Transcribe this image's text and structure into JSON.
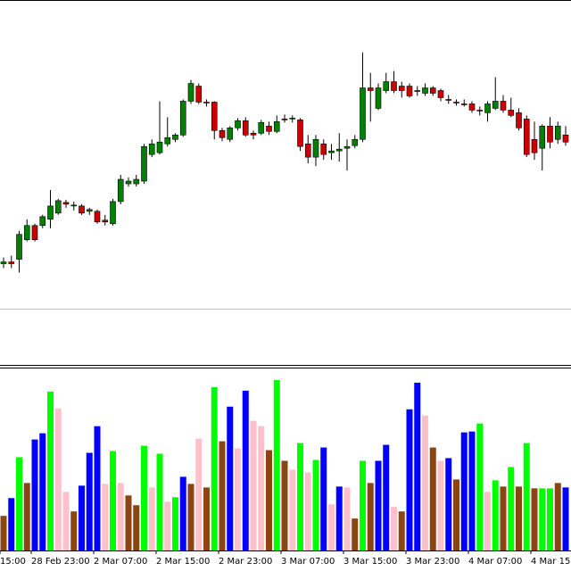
{
  "chart_data": [
    {
      "type": "candlestick",
      "categories": [
        "15:00",
        null,
        null,
        null,
        "28 Feb 23:00",
        null,
        null,
        null,
        null,
        null,
        null,
        null,
        "2 Mar 07:00",
        null,
        null,
        null,
        null,
        null,
        null,
        null,
        "2 Mar 15:00",
        null,
        null,
        null,
        null,
        null,
        null,
        null,
        "2 Mar 23:00",
        null,
        null,
        null,
        null,
        null,
        null,
        null,
        "3 Mar 07:00",
        null,
        null,
        null,
        null,
        null,
        null,
        null,
        "3 Mar 15:00",
        null,
        null,
        null,
        null,
        null,
        null,
        null,
        "3 Mar 23:00",
        null,
        null,
        null,
        null,
        null,
        null,
        null,
        "4 Mar 07:00",
        null,
        null,
        null,
        null,
        null,
        null,
        null,
        "4 Mar 15",
        null,
        null,
        null,
        null
      ],
      "open": [
        115,
        117,
        120,
        142,
        158,
        158,
        165,
        172,
        184,
        180,
        180,
        174,
        174,
        164,
        160,
        185,
        205,
        205,
        208,
        238,
        240,
        250,
        255,
        260,
        298,
        315,
        297,
        297,
        265,
        255,
        268,
        276,
        262,
        262,
        270,
        264,
        278,
        278,
        277,
        250,
        235,
        250,
        240,
        242,
        245,
        248,
        255,
        313,
        290,
        310,
        320,
        315,
        315,
        310,
        307,
        313,
        310,
        300,
        297,
        295,
        295,
        288,
        285,
        290,
        298,
        288,
        285,
        278,
        255,
        245,
        270,
        255,
        260
      ],
      "high": [
        122,
        124,
        152,
        165,
        160,
        170,
        198,
        188,
        187,
        185,
        182,
        178,
        176,
        170,
        188,
        215,
        212,
        215,
        250,
        255,
        298,
        280,
        262,
        300,
        322,
        318,
        300,
        298,
        268,
        270,
        279,
        280,
        265,
        277,
        275,
        282,
        283,
        282,
        279,
        260,
        260,
        255,
        250,
        262,
        255,
        260,
        353,
        330,
        318,
        330,
        332,
        320,
        318,
        315,
        318,
        315,
        312,
        305,
        300,
        300,
        298,
        292,
        298,
        325,
        305,
        302,
        290,
        282,
        275,
        272,
        280,
        275,
        270
      ],
      "low": [
        110,
        110,
        105,
        140,
        140,
        155,
        155,
        170,
        178,
        175,
        170,
        170,
        160,
        158,
        158,
        182,
        202,
        202,
        205,
        235,
        238,
        247,
        252,
        258,
        295,
        295,
        292,
        255,
        253,
        252,
        265,
        258,
        255,
        260,
        260,
        262,
        274,
        274,
        242,
        228,
        225,
        232,
        232,
        230,
        220,
        245,
        252,
        275,
        288,
        307,
        307,
        302,
        302,
        304,
        304,
        304,
        298,
        295,
        293,
        292,
        285,
        282,
        275,
        288,
        285,
        280,
        265,
        235,
        232,
        220,
        245,
        250,
        248
      ],
      "close": [
        117,
        115,
        148,
        158,
        142,
        168,
        180,
        186,
        182,
        181,
        172,
        176,
        162,
        162,
        185,
        210,
        208,
        210,
        247,
        250,
        252,
        257,
        260,
        298,
        318,
        297,
        296,
        265,
        257,
        268,
        276,
        260,
        260,
        274,
        264,
        275,
        277,
        279,
        247,
        235,
        255,
        238,
        242,
        244,
        247,
        255,
        313,
        310,
        313,
        320,
        310,
        310,
        304,
        309,
        313,
        307,
        302,
        299,
        296,
        294,
        288,
        287,
        295,
        298,
        288,
        282,
        268,
        238,
        240,
        270,
        252,
        270,
        252
      ],
      "up_color": "#008000",
      "down_color": "#cc0000",
      "ylim": [
        0,
        410
      ]
    },
    {
      "type": "bar",
      "values": [
        39,
        59,
        105,
        76,
        125,
        132,
        179,
        160,
        66,
        44,
        73,
        110,
        140,
        75,
        112,
        76,
        62,
        51,
        118,
        71,
        109,
        55,
        60,
        83,
        75,
        126,
        71,
        184,
        123,
        162,
        115,
        180,
        146,
        140,
        113,
        192,
        101,
        91,
        121,
        88,
        102,
        116,
        52,
        72,
        71,
        36,
        101,
        76,
        101,
        119,
        49,
        44,
        159,
        189,
        152,
        116,
        101,
        104,
        80,
        133,
        134,
        143,
        66,
        79,
        72,
        94,
        72,
        121,
        70,
        70,
        70,
        76,
        71
      ],
      "colors": [
        "#8b4513",
        "#0000ff",
        "#00ff00",
        "#8b4513",
        "#0000ff",
        "#0000ff",
        "#00ff00",
        "#ffc0cb",
        "#ffc0cb",
        "#8b4513",
        "#0000ff",
        "#0000ff",
        "#0000ff",
        "#ffc0cb",
        "#00ff00",
        "#ffc0cb",
        "#8b4513",
        "#8b4513",
        "#00ff00",
        "#ffc0cb",
        "#00ff00",
        "#ffc0cb",
        "#00ff00",
        "#0000ff",
        "#8b4513",
        "#ffc0cb",
        "#8b4513",
        "#00ff00",
        "#8b4513",
        "#0000ff",
        "#ffc0cb",
        "#0000ff",
        "#ffc0cb",
        "#ffc0cb",
        "#8b4513",
        "#00ff00",
        "#8b4513",
        "#ffc0cb",
        "#00ff00",
        "#ffc0cb",
        "#00ff00",
        "#0000ff",
        "#ffc0cb",
        "#0000ff",
        "#ffc0cb",
        "#8b4513",
        "#00ff00",
        "#8b4513",
        "#0000ff",
        "#0000ff",
        "#ffc0cb",
        "#8b4513",
        "#0000ff",
        "#0000ff",
        "#ffc0cb",
        "#8b4513",
        "#ffc0cb",
        "#0000ff",
        "#8b4513",
        "#0000ff",
        "#0000ff",
        "#00ff00",
        "#ffc0cb",
        "#00ff00",
        "#8b4513",
        "#00ff00",
        "#8b4513",
        "#00ff00",
        "#8b4513",
        "#00ff00",
        "#00ff00",
        "#8b4513",
        "#0000ff"
      ],
      "ylim": [
        0,
        205
      ]
    }
  ]
}
